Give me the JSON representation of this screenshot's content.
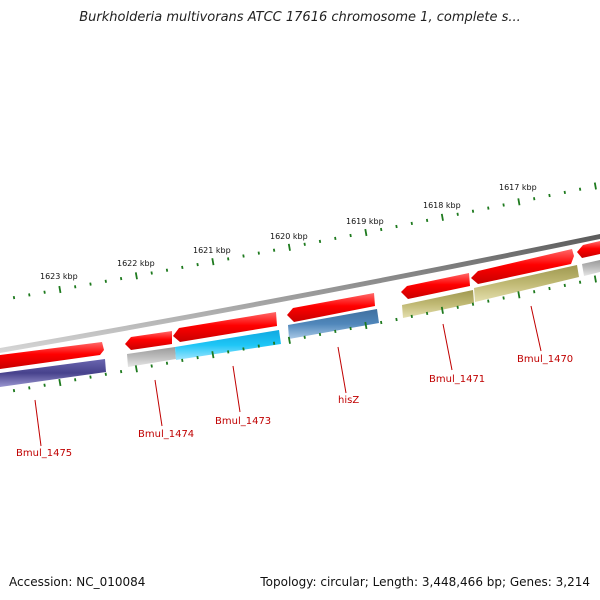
{
  "title": "Burkholderia multivorans ATCC 17616 chromosome 1, complete s...",
  "footer": {
    "accession": "Accession: NC_010084",
    "summary": "Topology: circular; Length: 3,448,466 bp; Genes: 3,214"
  },
  "scale_labels": [
    "1623 kbp",
    "1622 kbp",
    "1621 kbp",
    "1620 kbp",
    "1619 kbp",
    "1618 kbp",
    "1617 kbp"
  ],
  "gene_labels": [
    "Bmul_1475",
    "Bmul_1474",
    "Bmul_1473",
    "hisZ",
    "Bmul_1471",
    "Bmul_1470"
  ],
  "colors": {
    "backbone": "#8a8a8a",
    "scale_ticks": "#1e7a1e",
    "cds": "#ff0000",
    "gene_label": "#c00000",
    "feature_purple": "#4b4690",
    "feature_gray": "#b5b5b5",
    "feature_cyan": "#19c0f0",
    "feature_steelblue": "#4a7fb0",
    "feature_khaki": "#b7b06a"
  }
}
